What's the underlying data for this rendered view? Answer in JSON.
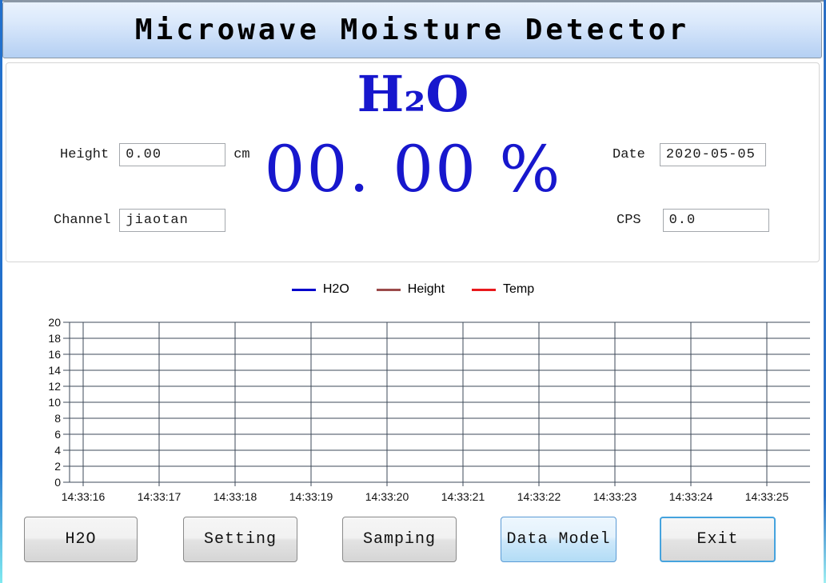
{
  "window": {
    "title": "Microwave Moisture Detector"
  },
  "info_panel": {
    "h2o_formula": "H₂O",
    "h2o_value": "00. 00 %",
    "fields": {
      "height": {
        "label": "Height",
        "value": "0.00",
        "unit": "cm"
      },
      "channel": {
        "label": "Channel",
        "value": "jiaotan"
      },
      "date": {
        "label": "Date",
        "value": "2020-05-05"
      },
      "cps": {
        "label": "CPS",
        "value": "0.0"
      }
    }
  },
  "chart_data": {
    "type": "line",
    "title": "",
    "xlabel": "",
    "ylabel": "",
    "x_tick_labels": [
      "14:33:16",
      "14:33:17",
      "14:33:18",
      "14:33:19",
      "14:33:20",
      "14:33:21",
      "14:33:22",
      "14:33:23",
      "14:33:24",
      "14:33:25"
    ],
    "ylim": [
      0,
      20
    ],
    "ytick_step": 2,
    "grid": true,
    "grid_color": "#3e4a59",
    "legend_position": "top-center",
    "series": [
      {
        "name": "H2O",
        "color": "#0000cc",
        "values": []
      },
      {
        "name": "Height",
        "color": "#9b4a4a",
        "values": []
      },
      {
        "name": "Temp",
        "color": "#e8191c",
        "values": []
      }
    ]
  },
  "buttons": [
    {
      "label": "H2O"
    },
    {
      "label": "Setting"
    },
    {
      "label": "Samping"
    },
    {
      "label": "Data Model"
    },
    {
      "label": "Exit"
    }
  ],
  "colors": {
    "accent_blue_text": "#1717cd",
    "frame_blue": "#2270cc",
    "frame_cyan": "#7fe9f0",
    "titlebar_top": "#e9f2fd",
    "titlebar_bottom": "#b4d0f3",
    "active_button_border": "#5b9bd5",
    "focus_button_border": "#45a3de"
  }
}
